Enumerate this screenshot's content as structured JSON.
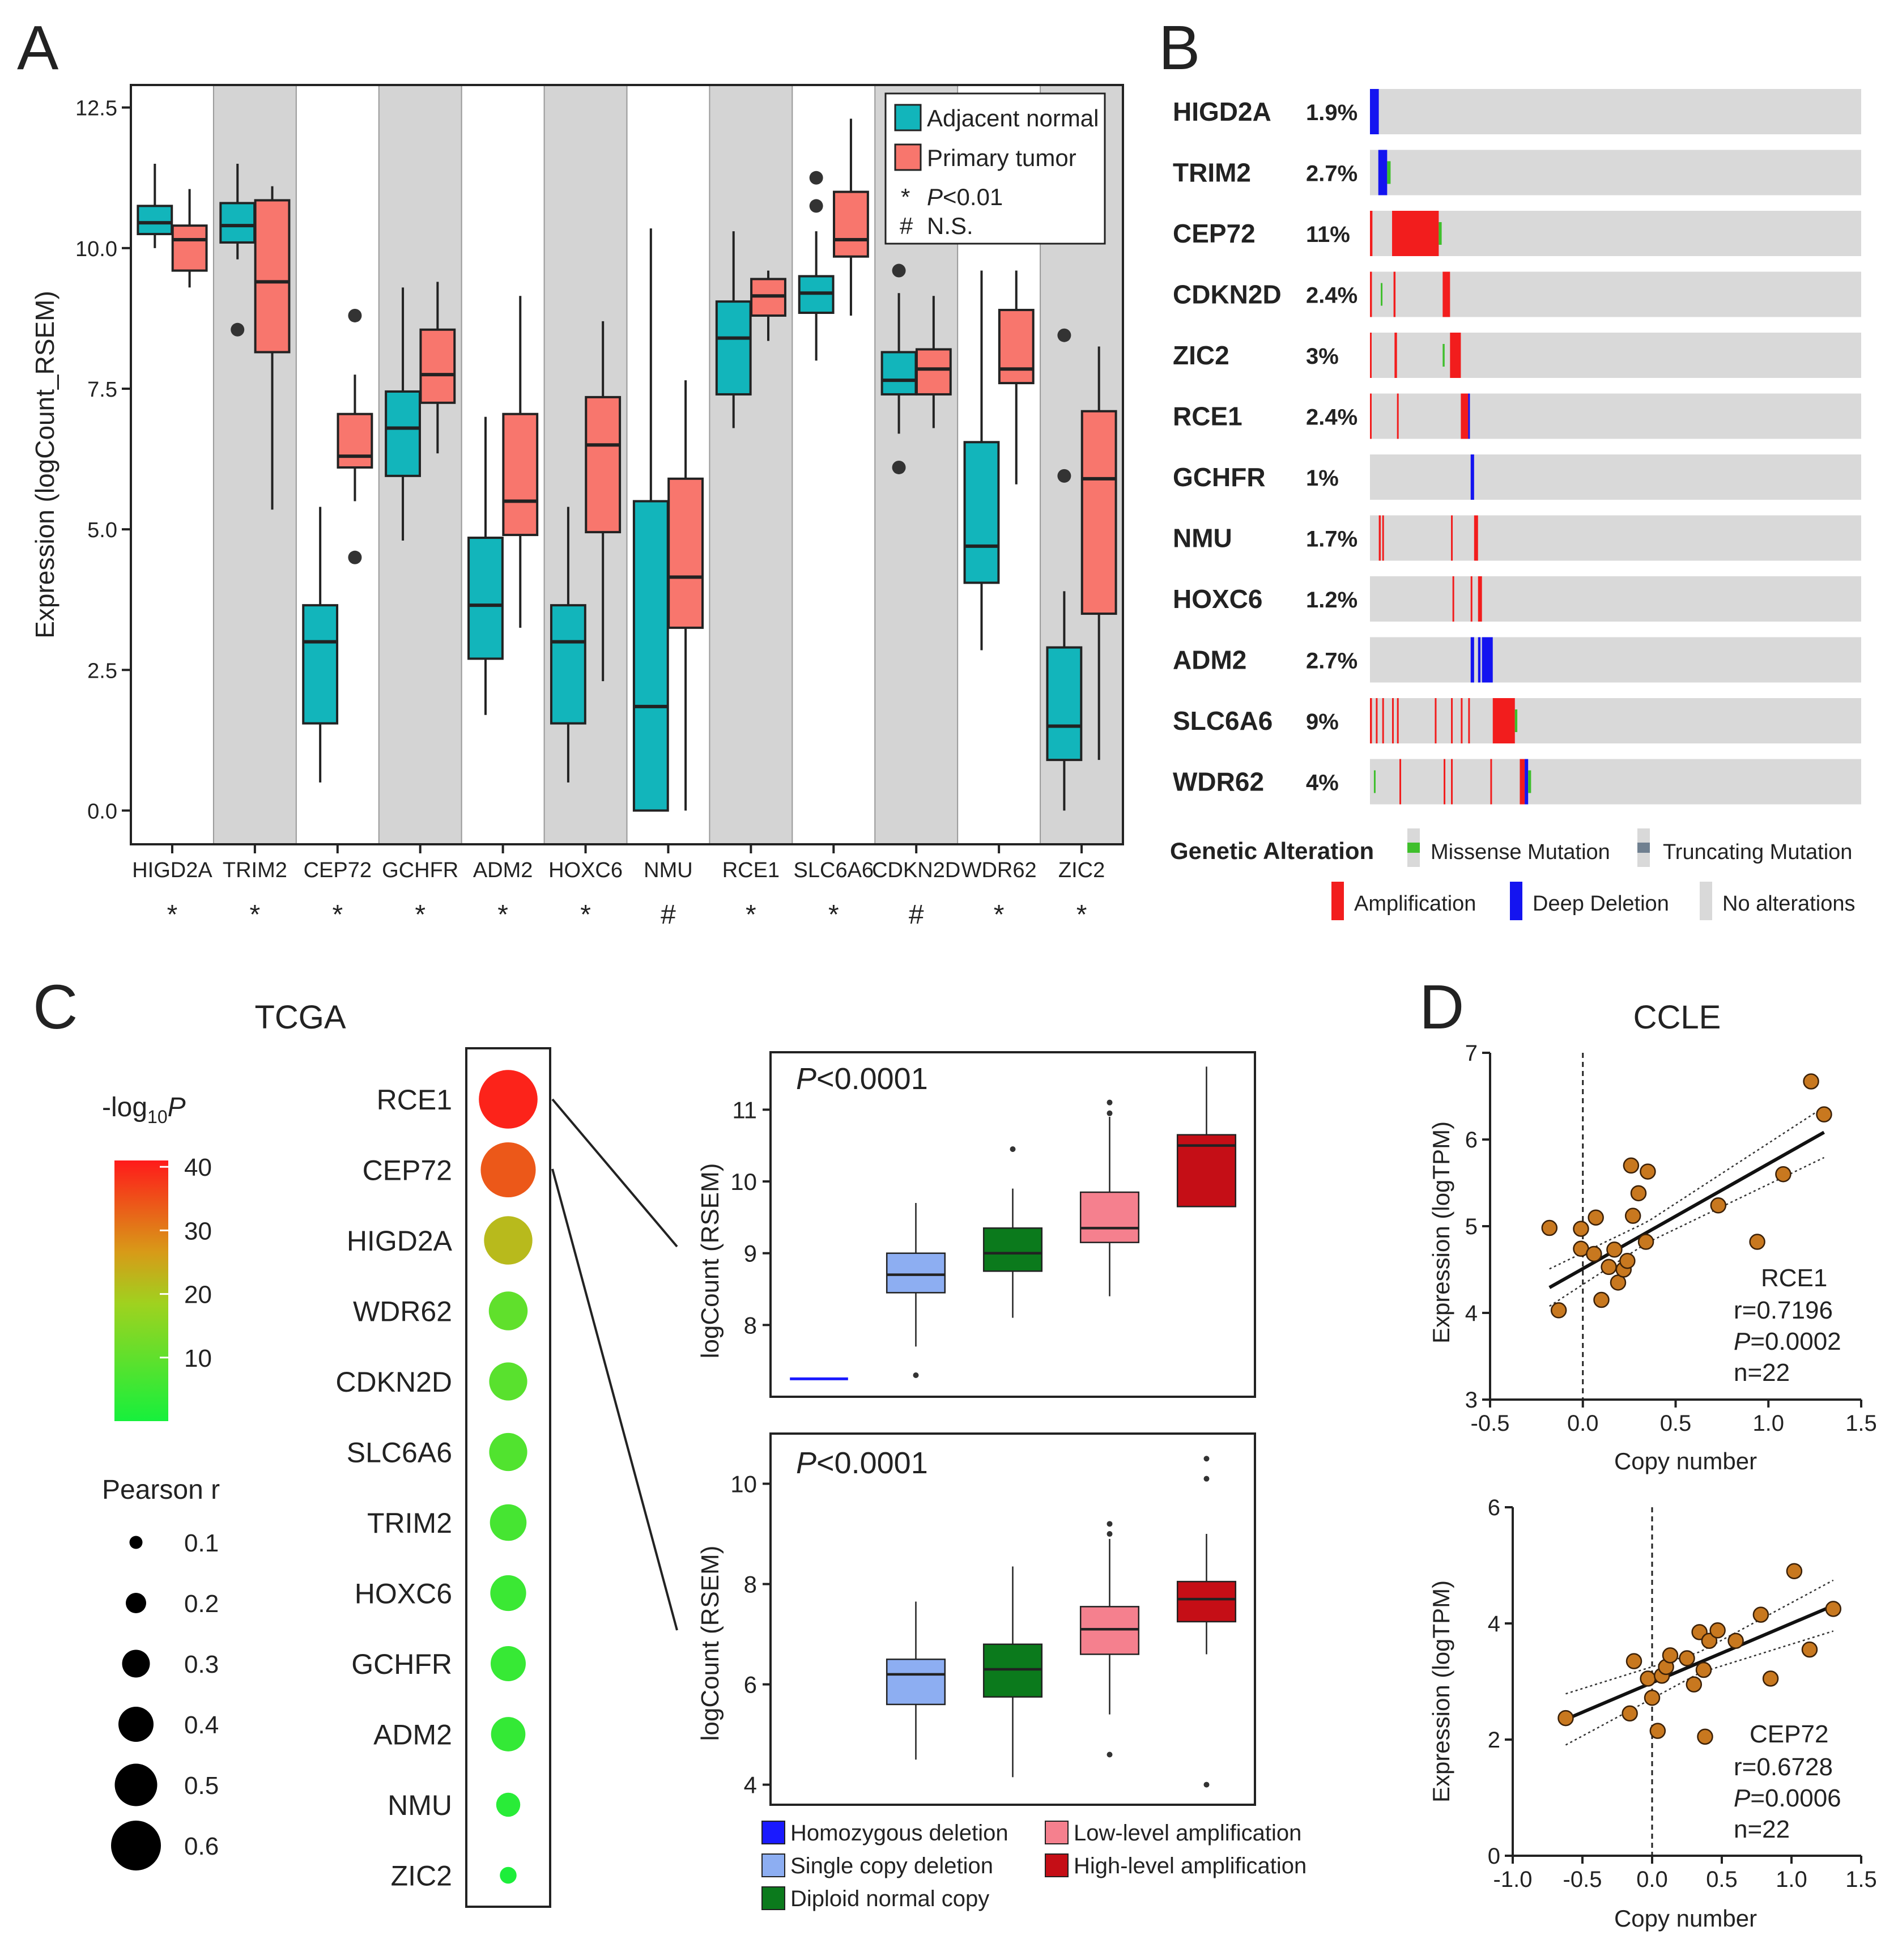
{
  "panels": {
    "A": "A",
    "B": "B",
    "C": "C",
    "D": "D"
  },
  "chart_data": [
    {
      "panel": "A",
      "type": "box",
      "ylabel": "Expression (logCount_RSEM)",
      "ylim": [
        -0.6,
        12.9
      ],
      "yticks": [
        0.0,
        2.5,
        5.0,
        7.5,
        10.0,
        12.5
      ],
      "ytick_labels": [
        "0.0",
        "2.5",
        "5.0",
        "7.5",
        "10.0",
        "12.5"
      ],
      "categories": [
        "HIGD2A",
        "TRIM2",
        "CEP72",
        "GCHFR",
        "ADM2",
        "HOXC6",
        "NMU",
        "RCE1",
        "SLC6A6",
        "CDKN2D",
        "WDR62",
        "ZIC2"
      ],
      "significance": [
        "*",
        "*",
        "*",
        "*",
        "*",
        "*",
        "#",
        "*",
        "*",
        "#",
        "*",
        "*"
      ],
      "series": [
        {
          "name": "Adjacent normal",
          "color": "#12b5bb",
          "boxes": [
            {
              "whislo": 10.0,
              "q1": 10.25,
              "med": 10.45,
              "q3": 10.75,
              "whishi": 11.5,
              "fliers": []
            },
            {
              "whislo": 9.8,
              "q1": 10.1,
              "med": 10.4,
              "q3": 10.8,
              "whishi": 11.5,
              "fliers": [
                8.55
              ]
            },
            {
              "whislo": 0.5,
              "q1": 1.55,
              "med": 3.0,
              "q3": 3.65,
              "whishi": 5.4,
              "fliers": []
            },
            {
              "whislo": 4.8,
              "q1": 5.95,
              "med": 6.8,
              "q3": 7.45,
              "whishi": 9.3,
              "fliers": []
            },
            {
              "whislo": 1.7,
              "q1": 2.7,
              "med": 3.65,
              "q3": 4.85,
              "whishi": 7.0,
              "fliers": []
            },
            {
              "whislo": 0.5,
              "q1": 1.55,
              "med": 3.0,
              "q3": 3.65,
              "whishi": 5.4,
              "fliers": []
            },
            {
              "whislo": 0.0,
              "q1": 0.0,
              "med": 1.85,
              "q3": 5.5,
              "whishi": 10.35,
              "fliers": []
            },
            {
              "whislo": 6.8,
              "q1": 7.4,
              "med": 8.4,
              "q3": 9.05,
              "whishi": 10.3,
              "fliers": []
            },
            {
              "whislo": 8.0,
              "q1": 8.85,
              "med": 9.2,
              "q3": 9.5,
              "whishi": 10.3,
              "fliers": [
                11.25,
                10.75
              ]
            },
            {
              "whislo": 6.7,
              "q1": 7.4,
              "med": 7.65,
              "q3": 8.15,
              "whishi": 9.2,
              "fliers": [
                9.6,
                6.1
              ]
            },
            {
              "whislo": 2.85,
              "q1": 4.05,
              "med": 4.7,
              "q3": 6.55,
              "whishi": 9.6,
              "fliers": []
            },
            {
              "whislo": 0.0,
              "q1": 0.9,
              "med": 1.5,
              "q3": 2.9,
              "whishi": 3.9,
              "fliers": [
                8.45,
                5.95
              ]
            }
          ]
        },
        {
          "name": "Primary tumor",
          "color": "#f8766d",
          "boxes": [
            {
              "whislo": 9.3,
              "q1": 9.6,
              "med": 10.15,
              "q3": 10.4,
              "whishi": 11.05,
              "fliers": []
            },
            {
              "whislo": 5.35,
              "q1": 8.15,
              "med": 9.4,
              "q3": 10.85,
              "whishi": 11.1,
              "fliers": []
            },
            {
              "whislo": 5.5,
              "q1": 6.1,
              "med": 6.3,
              "q3": 7.05,
              "whishi": 7.75,
              "fliers": [
                8.8,
                4.5
              ]
            },
            {
              "whislo": 6.35,
              "q1": 7.25,
              "med": 7.75,
              "q3": 8.55,
              "whishi": 9.4,
              "fliers": []
            },
            {
              "whislo": 3.25,
              "q1": 4.9,
              "med": 5.5,
              "q3": 7.05,
              "whishi": 9.15,
              "fliers": []
            },
            {
              "whislo": 2.3,
              "q1": 4.95,
              "med": 6.5,
              "q3": 7.35,
              "whishi": 8.7,
              "fliers": []
            },
            {
              "whislo": 0.0,
              "q1": 3.25,
              "med": 4.15,
              "q3": 5.9,
              "whishi": 7.65,
              "fliers": []
            },
            {
              "whislo": 8.35,
              "q1": 8.8,
              "med": 9.15,
              "q3": 9.45,
              "whishi": 9.6,
              "fliers": []
            },
            {
              "whislo": 8.8,
              "q1": 9.85,
              "med": 10.15,
              "q3": 11.0,
              "whishi": 12.3,
              "fliers": []
            },
            {
              "whislo": 6.8,
              "q1": 7.4,
              "med": 7.85,
              "q3": 8.2,
              "whishi": 9.15,
              "fliers": []
            },
            {
              "whislo": 5.8,
              "q1": 7.6,
              "med": 7.85,
              "q3": 8.9,
              "whishi": 9.6,
              "fliers": []
            },
            {
              "whislo": 0.9,
              "q1": 3.5,
              "med": 5.9,
              "q3": 7.1,
              "whishi": 8.25,
              "fliers": []
            }
          ]
        }
      ],
      "legend": {
        "normal": "Adjacent normal",
        "tumor": "Primary tumor",
        "star_symbol": "*",
        "star_p": "P",
        "star_rest": "<0.01",
        "hash_symbol": "#",
        "hash_text": "N.S."
      }
    },
    {
      "panel": "B",
      "type": "oncoprint",
      "genes": [
        "HIGD2A",
        "TRIM2",
        "CEP72",
        "CDKN2D",
        "ZIC2",
        "RCE1",
        "GCHFR",
        "NMU",
        "HOXC6",
        "ADM2",
        "SLC6A6",
        "WDR62"
      ],
      "percent": [
        "1.9%",
        "2.7%",
        "11%",
        "2.4%",
        "3%",
        "2.4%",
        "1%",
        "1.7%",
        "1.2%",
        "2.7%",
        "9%",
        "4%"
      ],
      "colors": {
        "amplification": "#f21d1d",
        "deep_deletion": "#1414f0",
        "missense": "#3fbf2c",
        "truncating": "#708090",
        "none": "#d9d9d9"
      },
      "legend": {
        "title": "Genetic Alteration",
        "missense": "Missense Mutation",
        "truncating": "Truncating Mutation",
        "amplification": "Amplification",
        "deep_deletion": "Deep Deletion",
        "none": "No alterations"
      }
    },
    {
      "panel": "C",
      "type": "dot",
      "title": "TCGA",
      "genes": [
        "RCE1",
        "CEP72",
        "HIGD2A",
        "WDR62",
        "CDKN2D",
        "SLC6A6",
        "TRIM2",
        "HOXC6",
        "GCHFR",
        "ADM2",
        "NMU",
        "ZIC2"
      ],
      "neglog10p": [
        40,
        34,
        22,
        10,
        9,
        8,
        6.5,
        5,
        4.5,
        4,
        2.5,
        1
      ],
      "pearson_r": [
        0.72,
        0.67,
        0.58,
        0.45,
        0.44,
        0.44,
        0.42,
        0.41,
        0.4,
        0.39,
        0.25,
        0.15
      ],
      "colorbar": {
        "label_main": "-log",
        "label_sub": "10",
        "label_italic": "P",
        "ticks": [
          10,
          20,
          30,
          40
        ],
        "tick_labels": [
          "10",
          "20",
          "30",
          "40"
        ],
        "range": [
          0,
          41
        ]
      },
      "size_legend": {
        "title": "Pearson r",
        "values": [
          0.1,
          0.2,
          0.3,
          0.4,
          0.5,
          0.6
        ],
        "labels": [
          "0.1",
          "0.2",
          "0.3",
          "0.4",
          "0.5",
          "0.6"
        ]
      }
    },
    {
      "panel": "C-box-RCE1",
      "type": "box",
      "ylabel": "logCount (RSEM)",
      "ylim": [
        7.0,
        11.8
      ],
      "yticks": [
        8,
        9,
        10,
        11
      ],
      "ytick_labels": [
        "8",
        "9",
        "10",
        "11"
      ],
      "p_italic": "P",
      "p_rest": "<0.0001",
      "homdel_level": 7.25,
      "boxes": [
        {
          "whislo": 7.7,
          "q1": 8.45,
          "med": 8.7,
          "q3": 9.0,
          "whishi": 9.7,
          "fliers": [
            7.3
          ]
        },
        {
          "whislo": 8.1,
          "q1": 8.75,
          "med": 9.0,
          "q3": 9.35,
          "whishi": 9.9,
          "fliers": [
            10.45
          ]
        },
        {
          "whislo": 8.4,
          "q1": 9.15,
          "med": 9.35,
          "q3": 9.85,
          "whishi": 10.9,
          "fliers": [
            10.95,
            11.1
          ]
        },
        {
          "whislo": 9.65,
          "q1": 9.65,
          "med": 10.5,
          "q3": 10.65,
          "whishi": 11.6,
          "fliers": []
        }
      ]
    },
    {
      "panel": "C-box-CEP72",
      "type": "box",
      "ylabel": "logCount (RSEM)",
      "ylim": [
        3.6,
        11.0
      ],
      "yticks": [
        4,
        6,
        8,
        10
      ],
      "ytick_labels": [
        "4",
        "6",
        "8",
        "10"
      ],
      "p_italic": "P",
      "p_rest": "<0.0001",
      "boxes": [
        {
          "whislo": 4.5,
          "q1": 5.6,
          "med": 6.2,
          "q3": 6.5,
          "whishi": 7.65,
          "fliers": []
        },
        {
          "whislo": 4.15,
          "q1": 5.75,
          "med": 6.3,
          "q3": 6.8,
          "whishi": 8.35,
          "fliers": []
        },
        {
          "whislo": 5.4,
          "q1": 6.6,
          "med": 7.1,
          "q3": 7.55,
          "whishi": 8.9,
          "fliers": [
            4.6,
            9.0,
            9.2
          ]
        },
        {
          "whislo": 6.6,
          "q1": 7.25,
          "med": 7.7,
          "q3": 8.05,
          "whishi": 9.0,
          "fliers": [
            4.0,
            10.1,
            10.5
          ]
        }
      ],
      "legend": {
        "homdel": "Homozygous deletion",
        "single": "Single copy deletion",
        "diploid": "Diploid normal copy",
        "low": "Low-level amplification",
        "high": "High-level amplification"
      },
      "colors": {
        "homdel": "#1a1aff",
        "single": "#8daef2",
        "diploid": "#0b7a1c",
        "low": "#f5808e",
        "high": "#c50e16"
      }
    },
    {
      "panel": "D-RCE1",
      "type": "scatter",
      "title": "CCLE",
      "xlabel": "Copy number",
      "ylabel": "Expression (logTPM)",
      "xlim": [
        -0.5,
        1.5
      ],
      "ylim": [
        3,
        7
      ],
      "xticks": [
        -0.5,
        0.0,
        0.5,
        1.0,
        1.5
      ],
      "xtick_labels": [
        "-0.5",
        "0.0",
        "0.5",
        "1.0",
        "1.5"
      ],
      "yticks": [
        3,
        4,
        5,
        6,
        7
      ],
      "ytick_labels": [
        "3",
        "4",
        "5",
        "6",
        "7"
      ],
      "x": [
        -0.18,
        -0.13,
        -0.01,
        -0.01,
        0.06,
        0.07,
        0.14,
        0.17,
        0.19,
        0.22,
        0.24,
        0.26,
        0.27,
        0.3,
        0.34,
        0.35,
        0.73,
        0.94,
        1.08,
        1.23,
        1.3,
        0.1
      ],
      "y": [
        4.98,
        4.03,
        4.97,
        4.74,
        4.68,
        5.1,
        4.53,
        4.73,
        4.35,
        4.5,
        4.6,
        5.7,
        5.12,
        5.38,
        4.82,
        5.63,
        5.24,
        4.82,
        5.6,
        6.67,
        6.29,
        4.15
      ],
      "fit": {
        "slope": 1.21,
        "intercept": 4.51
      },
      "annotation": {
        "gene": "RCE1",
        "r": "r=0.7196",
        "p_italic": "P",
        "p_rest": "=0.0002",
        "n": "n=22"
      }
    },
    {
      "panel": "D-CEP72",
      "type": "scatter",
      "xlabel": "Copy number",
      "ylabel": "Expression (logTPM)",
      "xlim": [
        -1.0,
        1.5
      ],
      "ylim": [
        0,
        6
      ],
      "xticks": [
        -1.0,
        -0.5,
        0.0,
        0.5,
        1.0,
        1.5
      ],
      "xtick_labels": [
        "-1.0",
        "-0.5",
        "0.0",
        "0.5",
        "1.0",
        "1.5"
      ],
      "yticks": [
        0,
        2,
        4,
        6
      ],
      "ytick_labels": [
        "0",
        "2",
        "4",
        "6"
      ],
      "x": [
        -0.62,
        -0.16,
        -0.13,
        -0.03,
        0.0,
        0.04,
        0.07,
        0.1,
        0.13,
        0.25,
        0.3,
        0.34,
        0.37,
        0.38,
        0.41,
        0.47,
        0.6,
        0.78,
        0.85,
        1.02,
        1.13,
        1.3
      ],
      "y": [
        2.37,
        2.45,
        3.35,
        3.05,
        2.72,
        2.15,
        3.1,
        3.25,
        3.45,
        3.4,
        2.95,
        3.85,
        3.2,
        2.05,
        3.7,
        3.88,
        3.7,
        4.15,
        3.05,
        4.9,
        3.55,
        4.25
      ],
      "fit": {
        "slope": 1.02,
        "intercept": 2.98
      },
      "annotation": {
        "gene": "CEP72",
        "r": "r=0.6728",
        "p_italic": "P",
        "p_rest": "=0.0006",
        "n": "n=22"
      }
    }
  ]
}
